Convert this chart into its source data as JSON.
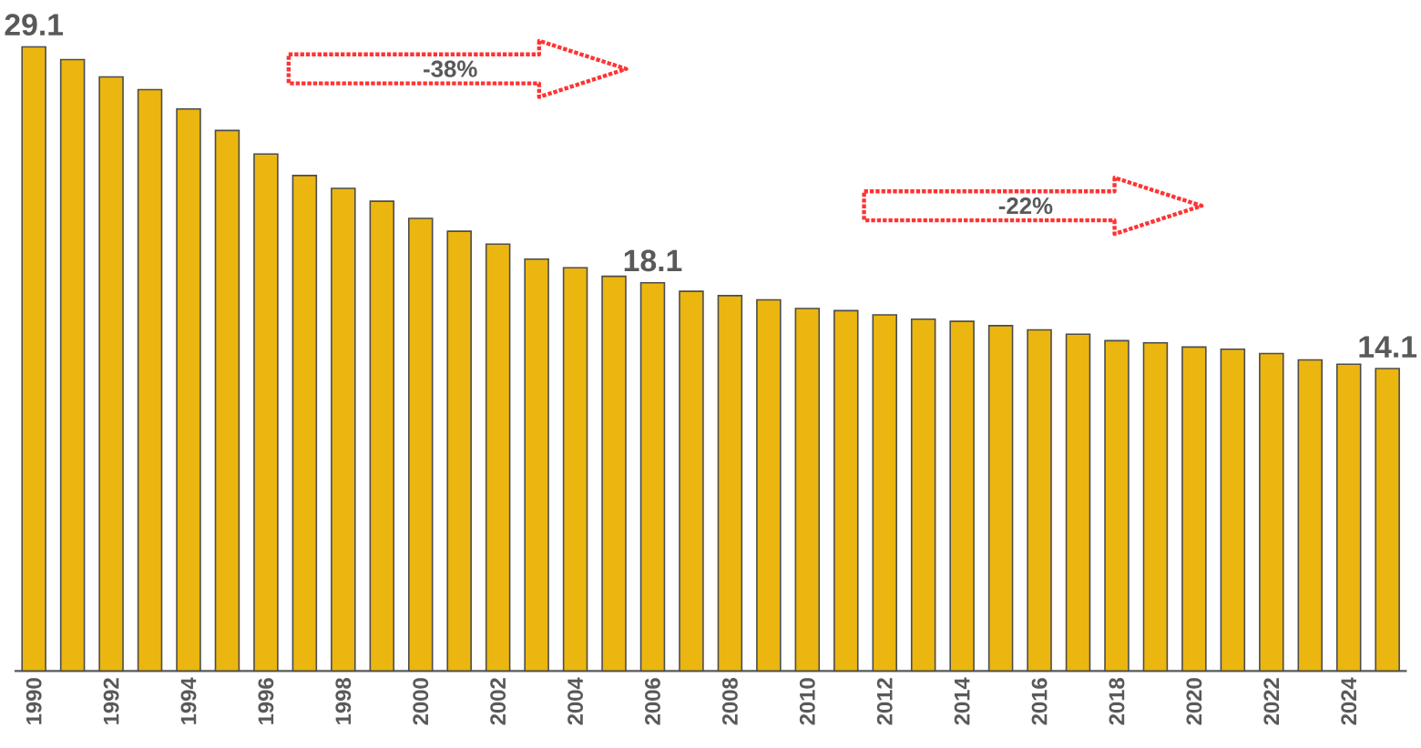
{
  "chart_data": {
    "type": "bar",
    "color": "#ebb60f",
    "categories": [
      "1990",
      null,
      "1992",
      null,
      "1994",
      null,
      "1996",
      null,
      "1998",
      null,
      "2000",
      null,
      "2002",
      null,
      "2004",
      null,
      "2006",
      null,
      "2008",
      null,
      "2010",
      null,
      "2012",
      null,
      "2014",
      null,
      "2016",
      null,
      "2018",
      null,
      "2020",
      null,
      "2022",
      null,
      "2024",
      null
    ],
    "values": [
      29.1,
      28.5,
      27.7,
      27.1,
      26.2,
      25.2,
      24.1,
      23.1,
      22.5,
      21.9,
      21.1,
      20.5,
      19.9,
      19.2,
      18.8,
      18.4,
      18.1,
      17.7,
      17.5,
      17.3,
      16.9,
      16.8,
      16.6,
      16.4,
      16.3,
      16.1,
      15.9,
      15.7,
      15.4,
      15.3,
      15.1,
      15.0,
      14.8,
      14.5,
      14.3,
      14.1
    ],
    "value_labels": [
      "29.1",
      null,
      null,
      null,
      null,
      null,
      null,
      null,
      null,
      null,
      null,
      null,
      null,
      null,
      null,
      null,
      "18.1",
      null,
      null,
      null,
      null,
      null,
      null,
      null,
      null,
      null,
      null,
      null,
      null,
      null,
      null,
      null,
      null,
      null,
      null,
      "14.1"
    ],
    "annotations": [
      "-38%",
      "-22%"
    ]
  }
}
